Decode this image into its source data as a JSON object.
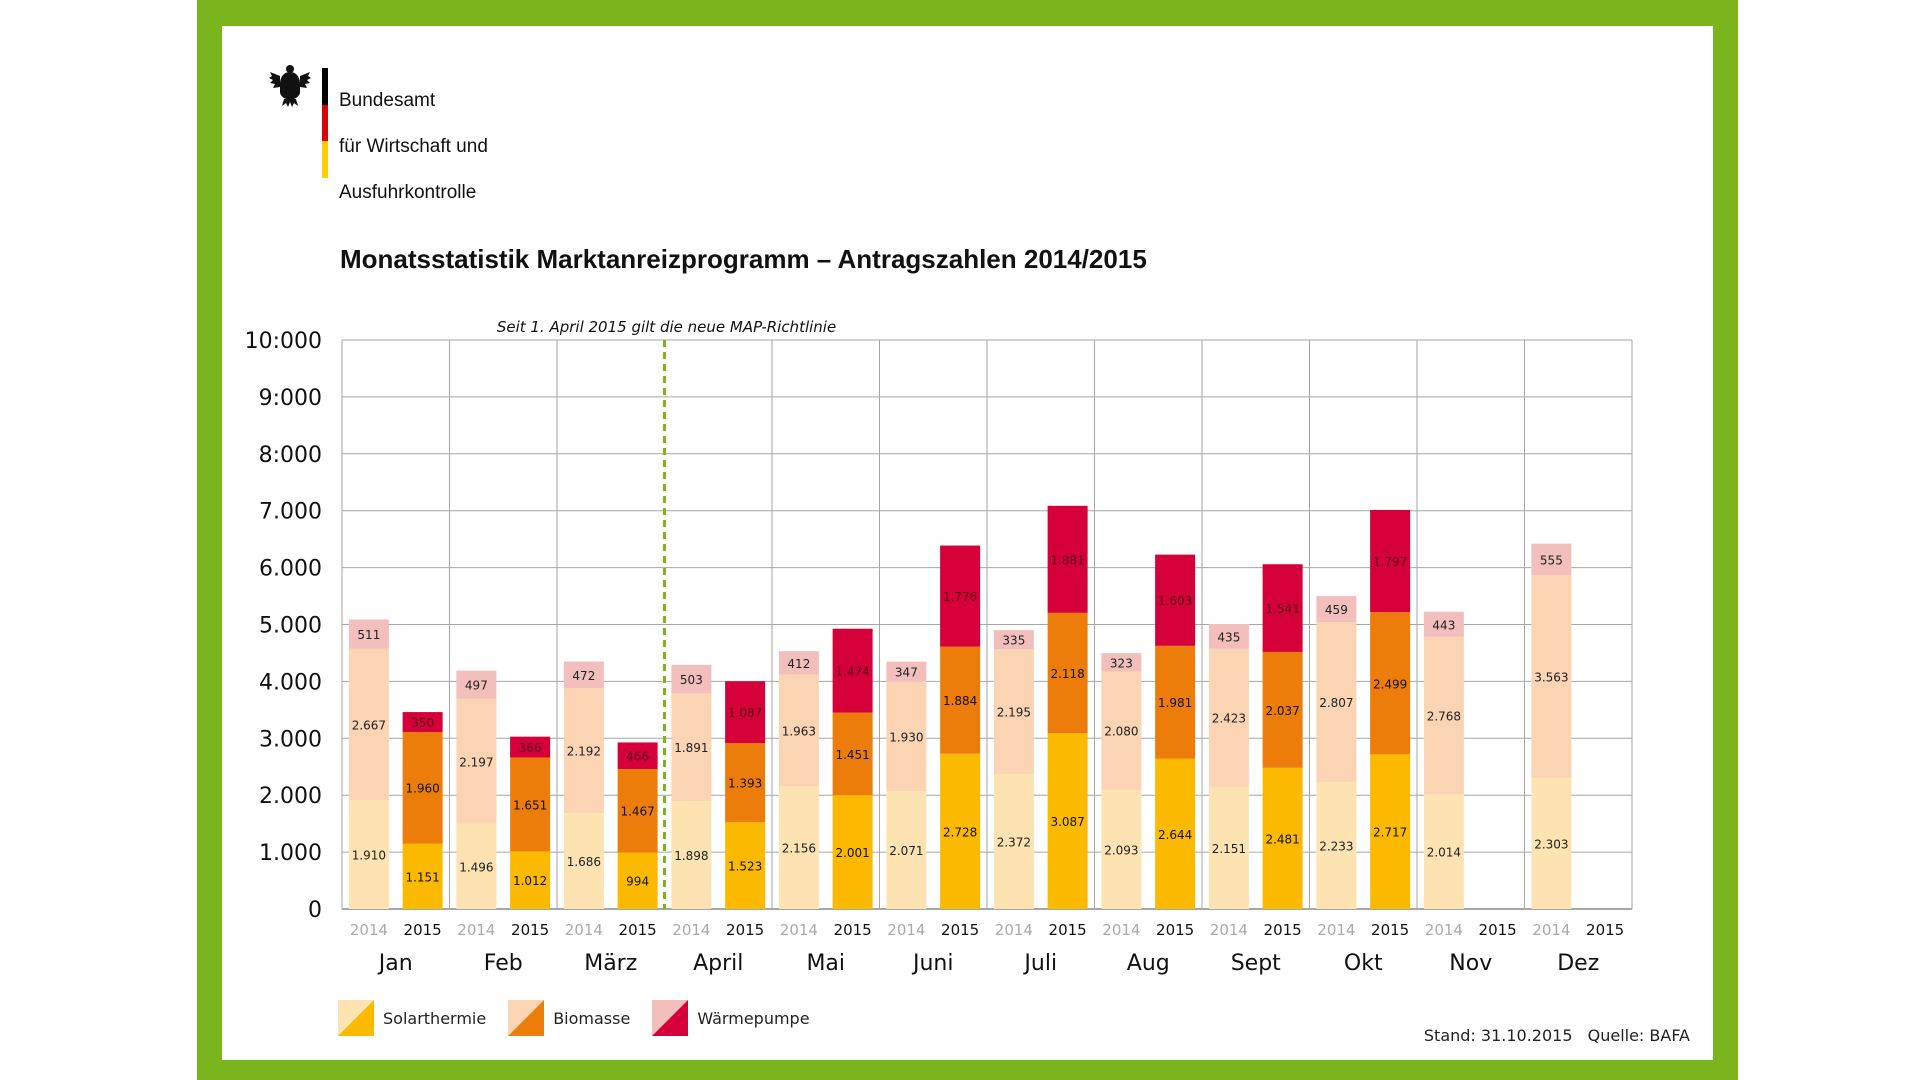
{
  "header": {
    "agency_lines": [
      "Bundesamt",
      "für Wirtschaft und",
      "Ausfuhrkontrolle"
    ],
    "title": "Monatsstatistik Marktanreizprogramm – Antragszahlen 2014/2015"
  },
  "colors": {
    "frame_green": "#7ab51d",
    "solar_2014": "#fde3b1",
    "solar_2015": "#fbb900",
    "bio_2014": "#fbd4b3",
    "bio_2015": "#ec7d0b",
    "wp_2014": "#f2bfbd",
    "wp_2015": "#d5003a",
    "flag_black": "#000000",
    "flag_red": "#dd0000",
    "flag_gold": "#ffce00",
    "marker_green": "#7ab51d"
  },
  "chart_data": {
    "type": "bar",
    "stacked": true,
    "annotation": "Seit 1. April 2015 gilt die neue MAP-Richtlinie",
    "annotation_month_index": 3,
    "y_ticks": [
      "0",
      "1.000",
      "2.000",
      "3.000",
      "4.000",
      "5.000",
      "6.000",
      "7.000",
      "8:000",
      "9:000",
      "10:000"
    ],
    "ylim": [
      0,
      10000
    ],
    "years": [
      "2014",
      "2015"
    ],
    "months": [
      "Jan",
      "Feb",
      "März",
      "April",
      "Mai",
      "Juni",
      "Juli",
      "Aug",
      "Sept",
      "Okt",
      "Nov",
      "Dez"
    ],
    "series_names": [
      "Solarthermie",
      "Biomasse",
      "Wärmepumpe"
    ],
    "values_2014": {
      "Solarthermie": [
        1910,
        1496,
        1686,
        1898,
        2156,
        2071,
        2372,
        2093,
        2151,
        2233,
        2014,
        2303
      ],
      "Biomasse": [
        2667,
        2197,
        2192,
        1891,
        1963,
        1930,
        2195,
        2080,
        2423,
        2807,
        2768,
        3563
      ],
      "Wärmepumpe": [
        511,
        497,
        472,
        503,
        412,
        347,
        335,
        323,
        435,
        459,
        443,
        555
      ]
    },
    "values_2015": {
      "Solarthermie": [
        1151,
        1012,
        994,
        1523,
        2001,
        2728,
        3087,
        2644,
        2481,
        2717,
        null,
        null
      ],
      "Biomasse": [
        1960,
        1651,
        1467,
        1393,
        1451,
        1884,
        2118,
        1981,
        2037,
        2499,
        null,
        null
      ],
      "Wärmepumpe": [
        350,
        366,
        466,
        1087,
        1474,
        1776,
        1881,
        1603,
        1541,
        1797,
        null,
        null
      ]
    },
    "labels_2014": {
      "Solarthermie": [
        "1.910",
        "1.496",
        "1.686",
        "1.898",
        "2.156",
        "2.071",
        "2.372",
        "2.093",
        "2.151",
        "2.233",
        "2.014",
        "2.303"
      ],
      "Biomasse": [
        "2.667",
        "2.197",
        "2.192",
        "1.891",
        "1.963",
        "1.930",
        "2.195",
        "2.080",
        "2.423",
        "2.807",
        "2.768",
        "3.563"
      ],
      "Wärmepumpe": [
        "511",
        "497",
        "472",
        "503",
        "412",
        "347",
        "335",
        "323",
        "435",
        "459",
        "443",
        "555"
      ]
    },
    "labels_2015": {
      "Solarthermie": [
        "1.151",
        "1.012",
        "994",
        "1.523",
        "2.001",
        "2.728",
        "3.087",
        "2.644",
        "2.481",
        "2.717",
        "",
        ""
      ],
      "Biomasse": [
        "1.960",
        "1.651",
        "1.467",
        "1.393",
        "1.451",
        "1.884",
        "2.118",
        "1.981",
        "2.037",
        "2.499",
        "",
        ""
      ],
      "Wärmepumpe": [
        "350",
        "366",
        "466",
        "1.087",
        "1.474",
        "1.776",
        "1.881",
        "1.603",
        "1.541",
        "1.797",
        "",
        ""
      ]
    },
    "legend_position": "bottom-left",
    "grid": true
  },
  "legend": [
    {
      "label": "Solarthermie"
    },
    {
      "label": "Biomasse"
    },
    {
      "label": "Wärmepumpe"
    }
  ],
  "footer": {
    "stand": "Stand: 31.10.2015",
    "quelle": "Quelle: BAFA"
  }
}
